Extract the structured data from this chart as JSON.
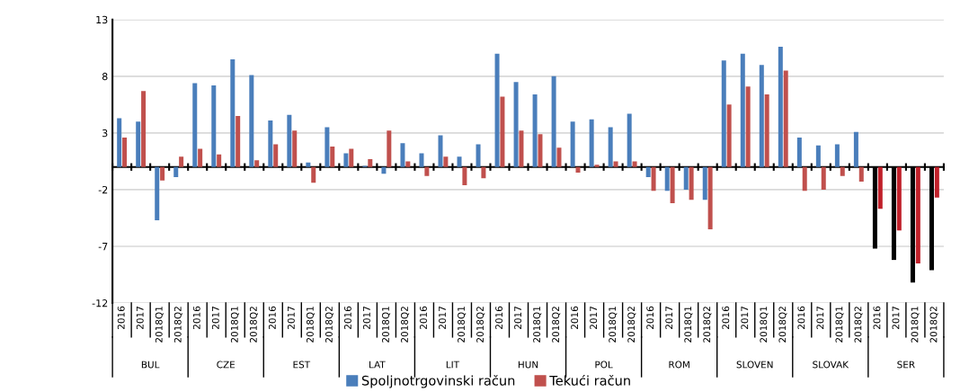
{
  "chart_data": {
    "type": "bar",
    "categories": [
      "2016",
      "2017",
      "2018Q1",
      "2018Q2",
      "2016",
      "2017",
      "2018Q1",
      "2018Q2",
      "2016",
      "2017",
      "2018Q1",
      "2018Q2",
      "2016",
      "2017",
      "2018Q1",
      "2018Q2",
      "2016",
      "2017",
      "2018Q1",
      "2018Q2",
      "2016",
      "2017",
      "2018Q1",
      "2018Q2",
      "2016",
      "2017",
      "2018Q1",
      "2018Q2",
      "2016",
      "2017",
      "2018Q1",
      "2018Q2",
      "2016",
      "2017",
      "2018Q1",
      "2018Q2",
      "2016",
      "2017",
      "2018Q1",
      "2018Q2",
      "2016",
      "2017",
      "2018Q1",
      "2018Q2"
    ],
    "series": [
      {
        "name": "Spoljnotrgovinski račun",
        "color": "#4a7ebb",
        "colors": [
          "#4a7ebb",
          "#4a7ebb",
          "#4a7ebb",
          "#4a7ebb",
          "#4a7ebb",
          "#4a7ebb",
          "#4a7ebb",
          "#4a7ebb",
          "#4a7ebb",
          "#4a7ebb",
          "#4a7ebb",
          "#4a7ebb",
          "#4a7ebb",
          "#4a7ebb",
          "#4a7ebb",
          "#4a7ebb",
          "#4a7ebb",
          "#4a7ebb",
          "#4a7ebb",
          "#4a7ebb",
          "#4a7ebb",
          "#4a7ebb",
          "#4a7ebb",
          "#4a7ebb",
          "#4a7ebb",
          "#4a7ebb",
          "#4a7ebb",
          "#4a7ebb",
          "#4a7ebb",
          "#4a7ebb",
          "#4a7ebb",
          "#4a7ebb",
          "#4a7ebb",
          "#4a7ebb",
          "#4a7ebb",
          "#4a7ebb",
          "#4a7ebb",
          "#4a7ebb",
          "#4a7ebb",
          "#4a7ebb",
          "#000000",
          "#000000",
          "#000000",
          "#000000"
        ],
        "values": [
          4.3,
          4.0,
          -4.7,
          -0.9,
          7.4,
          7.2,
          9.5,
          8.1,
          4.1,
          4.6,
          0.4,
          3.5,
          1.2,
          0.1,
          -0.6,
          2.1,
          1.2,
          2.8,
          0.9,
          2.0,
          10.0,
          7.5,
          6.4,
          8.0,
          4.0,
          4.2,
          3.5,
          4.7,
          -0.9,
          -2.1,
          -2.0,
          -2.9,
          9.4,
          10.0,
          9.0,
          10.6,
          2.6,
          1.9,
          2.0,
          3.1,
          -7.2,
          -8.2,
          -10.2,
          -9.1
        ]
      },
      {
        "name": "Tekući račun",
        "color": "#c0504d",
        "colors": [
          "#c0504d",
          "#c0504d",
          "#c0504d",
          "#c0504d",
          "#c0504d",
          "#c0504d",
          "#c0504d",
          "#c0504d",
          "#c0504d",
          "#c0504d",
          "#c0504d",
          "#c0504d",
          "#c0504d",
          "#c0504d",
          "#c0504d",
          "#c0504d",
          "#c0504d",
          "#c0504d",
          "#c0504d",
          "#c0504d",
          "#c0504d",
          "#c0504d",
          "#c0504d",
          "#c0504d",
          "#c0504d",
          "#c0504d",
          "#c0504d",
          "#c0504d",
          "#c0504d",
          "#c0504d",
          "#c0504d",
          "#c0504d",
          "#c0504d",
          "#c0504d",
          "#c0504d",
          "#c0504d",
          "#c0504d",
          "#c0504d",
          "#c0504d",
          "#c0504d",
          "#c0202a",
          "#c0202a",
          "#c0202a",
          "#c0202a"
        ],
        "values": [
          2.6,
          6.7,
          -1.2,
          0.9,
          1.6,
          1.1,
          4.5,
          0.6,
          2.0,
          3.2,
          -1.4,
          1.8,
          1.6,
          0.7,
          3.2,
          0.5,
          -0.8,
          0.9,
          -1.6,
          -1.0,
          6.2,
          3.2,
          2.9,
          1.7,
          -0.5,
          0.2,
          0.5,
          0.5,
          -2.1,
          -3.2,
          -2.9,
          -5.5,
          5.5,
          7.1,
          6.4,
          8.5,
          -2.1,
          -2.0,
          -0.8,
          -1.3,
          -3.7,
          -5.6,
          -8.5,
          -2.7
        ]
      }
    ],
    "annotations": [
      "BUL",
      "CZE",
      "EST",
      "LAT",
      "LIT",
      "HUN",
      "POL",
      "ROM",
      "SLOVEN",
      "SLOVAK",
      "SER"
    ],
    "ylim": [
      -12,
      13
    ],
    "yticks": [
      -12,
      -7,
      -2,
      3,
      8,
      13
    ],
    "grid": "y",
    "legend": "bottom"
  }
}
